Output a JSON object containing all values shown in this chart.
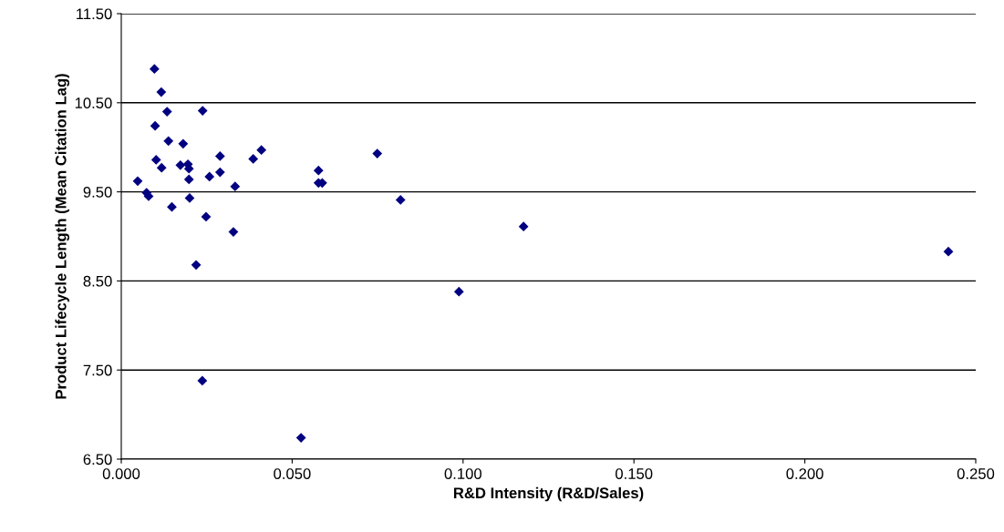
{
  "chart_data": {
    "type": "scatter",
    "xlabel": "R&D Intensity (R&D/Sales)",
    "ylabel": "Product Lifecycle Length (Mean Citation Lag)",
    "x": [
      0.0097,
      0.0117,
      0.0134,
      0.0238,
      0.0099,
      0.0138,
      0.0181,
      0.041,
      0.0386,
      0.0289,
      0.0102,
      0.0118,
      0.0173,
      0.0195,
      0.0198,
      0.0258,
      0.0289,
      0.0198,
      0.0048,
      0.0333,
      0.0074,
      0.008,
      0.02,
      0.0148,
      0.0248,
      0.0328,
      0.0219,
      0.0237,
      0.0526,
      0.0577,
      0.0577,
      0.0588,
      0.0749,
      0.0817,
      0.0988,
      0.1177,
      0.242
    ],
    "values": [
      10.88,
      10.62,
      10.4,
      10.41,
      10.24,
      10.07,
      10.04,
      9.97,
      9.87,
      9.9,
      9.86,
      9.77,
      9.8,
      9.81,
      9.76,
      9.67,
      9.72,
      9.64,
      9.62,
      9.56,
      9.49,
      9.45,
      9.43,
      9.33,
      9.22,
      9.05,
      8.68,
      7.38,
      6.74,
      9.74,
      9.6,
      9.6,
      9.93,
      9.41,
      8.38,
      9.11,
      8.83
    ],
    "color": "#000080",
    "marker": "diamond",
    "grid": "y",
    "xlim": [
      0,
      0.25
    ],
    "xticks": [
      {
        "value": 0,
        "label": "0.000"
      },
      {
        "value": 0.05,
        "label": "0.050"
      },
      {
        "value": 0.1,
        "label": "0.100"
      },
      {
        "value": 0.15,
        "label": "0.150"
      },
      {
        "value": 0.2,
        "label": "0.200"
      },
      {
        "value": 0.25,
        "label": "0.250"
      }
    ],
    "ylim": [
      6.5,
      11.5
    ],
    "yticks": [
      {
        "value": 6.5,
        "label": "6.50"
      },
      {
        "value": 7.5,
        "label": "7.50"
      },
      {
        "value": 8.5,
        "label": "8.50"
      },
      {
        "value": 9.5,
        "label": "9.50"
      },
      {
        "value": 10.5,
        "label": "10.50"
      },
      {
        "value": 11.5,
        "label": "11.50"
      }
    ]
  }
}
